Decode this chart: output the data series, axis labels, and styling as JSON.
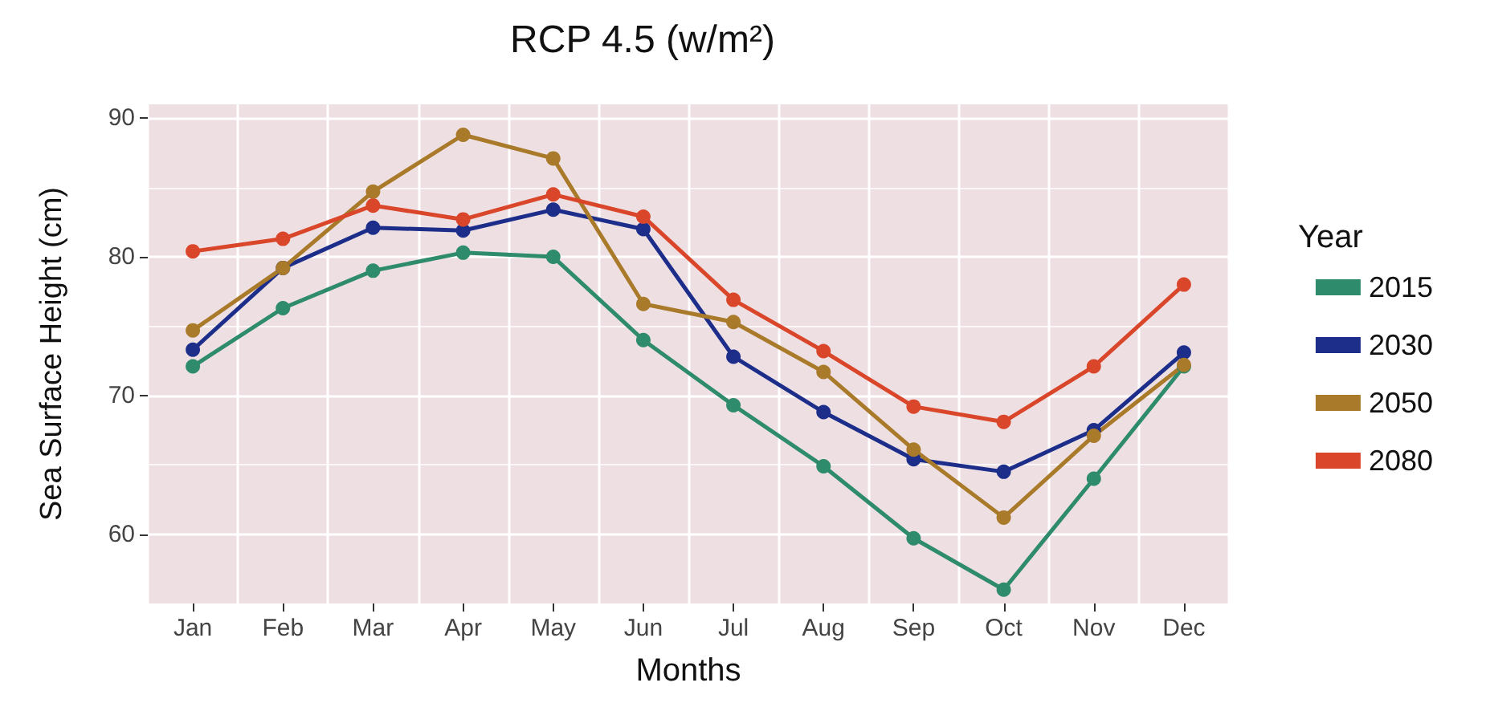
{
  "chart_data": {
    "type": "line",
    "title": "RCP 4.5 (w/m²)",
    "xlabel": "Months",
    "ylabel": "Sea Surface Height (cm)",
    "legend_title": "Year",
    "categories": [
      "Jan",
      "Feb",
      "Mar",
      "Apr",
      "May",
      "Jun",
      "Jul",
      "Aug",
      "Sep",
      "Oct",
      "Nov",
      "Dec"
    ],
    "series": [
      {
        "name": "2015",
        "color": "#2e8b6b",
        "values": [
          72.1,
          76.3,
          79.0,
          80.3,
          80.0,
          74.0,
          69.3,
          64.9,
          59.7,
          56.0,
          64.0,
          72.1
        ]
      },
      {
        "name": "2030",
        "color": "#1c2e8a",
        "values": [
          73.3,
          79.2,
          82.1,
          81.9,
          83.4,
          82.0,
          72.8,
          68.8,
          65.4,
          64.5,
          67.5,
          73.1
        ]
      },
      {
        "name": "2050",
        "color": "#a87a2a",
        "values": [
          74.7,
          79.2,
          84.7,
          88.8,
          87.1,
          76.6,
          75.3,
          71.7,
          66.1,
          61.2,
          67.1,
          72.2
        ]
      },
      {
        "name": "2080",
        "color": "#d9462a",
        "values": [
          80.4,
          81.3,
          83.7,
          82.7,
          84.5,
          82.9,
          76.9,
          73.2,
          69.2,
          68.1,
          72.1,
          78.0
        ]
      }
    ],
    "ylim": [
      55,
      91
    ],
    "yticks": [
      60,
      70,
      80,
      90
    ],
    "grid": true,
    "legend": "right",
    "marker": "circle",
    "line_style": "solid"
  }
}
